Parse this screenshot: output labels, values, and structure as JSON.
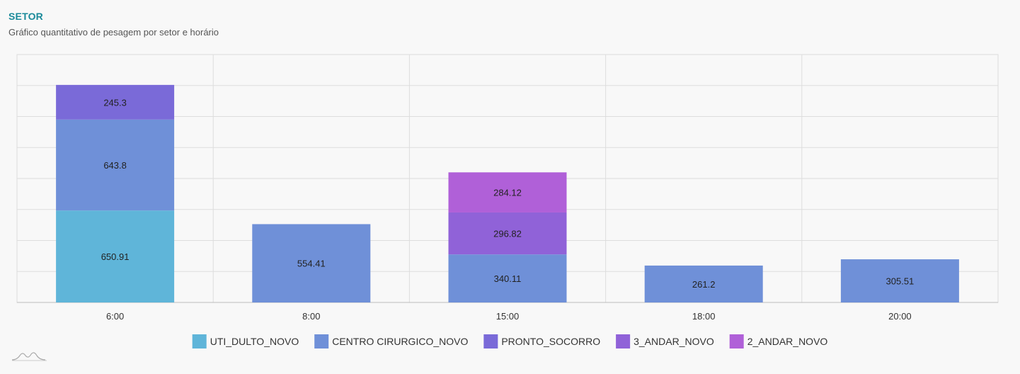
{
  "header": {
    "title": "SETOR",
    "subtitle": "Gráfico quantitativo de pesagem por setor e horário"
  },
  "chart_data": {
    "type": "bar",
    "stacked": true,
    "categories": [
      "6:00",
      "8:00",
      "15:00",
      "18:00",
      "20:00"
    ],
    "ylim": [
      0,
      1755
    ],
    "grid": true,
    "legend_position": "bottom",
    "series": [
      {
        "name": "UTI_DULTO_NOVO",
        "color": "#5fb5d9",
        "values": [
          650.91,
          0,
          0,
          0,
          0
        ],
        "labels": [
          "650.91",
          "",
          "",
          "",
          ""
        ]
      },
      {
        "name": "CENTRO CIRURGICO_NOVO",
        "color": "#6f90d8",
        "values": [
          643.8,
          554.41,
          340.11,
          261.2,
          305.51
        ],
        "labels": [
          "643.8",
          "554.41",
          "340.11",
          "261.2",
          "305.51"
        ]
      },
      {
        "name": "PRONTO_SOCORRO",
        "color": "#7a6ad8",
        "values": [
          245.3,
          0,
          0,
          0,
          0
        ],
        "labels": [
          "245.3",
          "",
          "",
          "",
          ""
        ]
      },
      {
        "name": "3_ANDAR_NOVO",
        "color": "#9062d8",
        "values": [
          0,
          0,
          296.82,
          0,
          0
        ],
        "labels": [
          "",
          "",
          "296.82",
          "",
          ""
        ]
      },
      {
        "name": "2_ANDAR_NOVO",
        "color": "#b060d8",
        "values": [
          0,
          0,
          284.12,
          0,
          0
        ],
        "labels": [
          "",
          "",
          "284.12",
          "",
          ""
        ]
      }
    ]
  }
}
